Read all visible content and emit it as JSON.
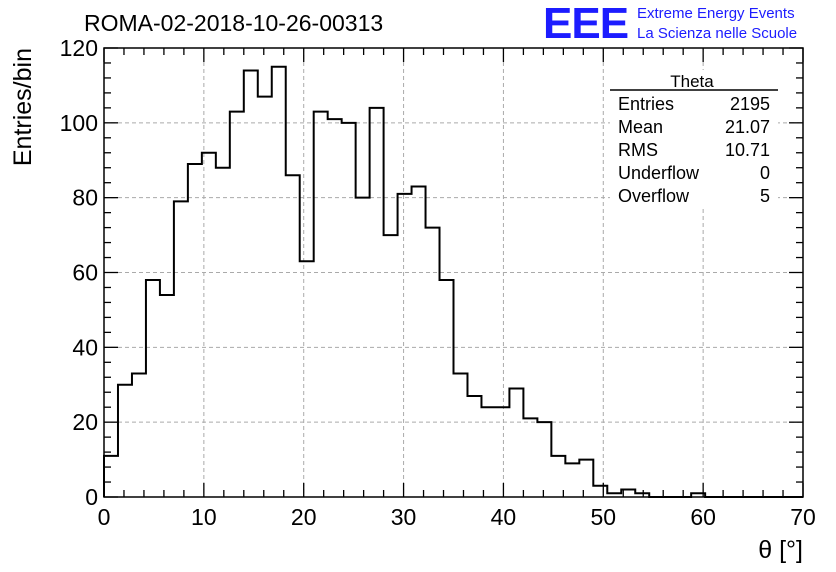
{
  "header": {
    "title": "ROMA-02-2018-10-26-00313",
    "logo": "EEE",
    "logo_line1": "Extreme Energy Events",
    "logo_line2": "La Scienza nelle Scuole",
    "logo_color": "#1c1cff"
  },
  "stats": {
    "name": "Theta",
    "rows": [
      {
        "label": "Entries",
        "value": "2195"
      },
      {
        "label": "Mean",
        "value": "21.07"
      },
      {
        "label": "RMS",
        "value": "10.71"
      },
      {
        "label": "Underflow",
        "value": "0"
      },
      {
        "label": "Overflow",
        "value": "5"
      }
    ]
  },
  "chart_data": {
    "type": "histogram",
    "xlabel": "θ [°]",
    "ylabel": "Entries/bin",
    "xlim": [
      0,
      70
    ],
    "ylim": [
      0,
      120
    ],
    "x_ticks": [
      0,
      10,
      20,
      30,
      40,
      50,
      60,
      70
    ],
    "y_ticks": [
      0,
      20,
      40,
      60,
      80,
      100,
      120
    ],
    "grid": true,
    "bin_width": 1.4,
    "bin_start": 0,
    "values": [
      11,
      30,
      33,
      58,
      54,
      79,
      89,
      92,
      88,
      103,
      114,
      107,
      115,
      86,
      63,
      103,
      101,
      100,
      80,
      104,
      70,
      81,
      83,
      72,
      58,
      33,
      27,
      24,
      24,
      29,
      21,
      20,
      11,
      9,
      10,
      3,
      1,
      2,
      1,
      0,
      0,
      0,
      1,
      0,
      0,
      0,
      0,
      0,
      0,
      0
    ]
  }
}
